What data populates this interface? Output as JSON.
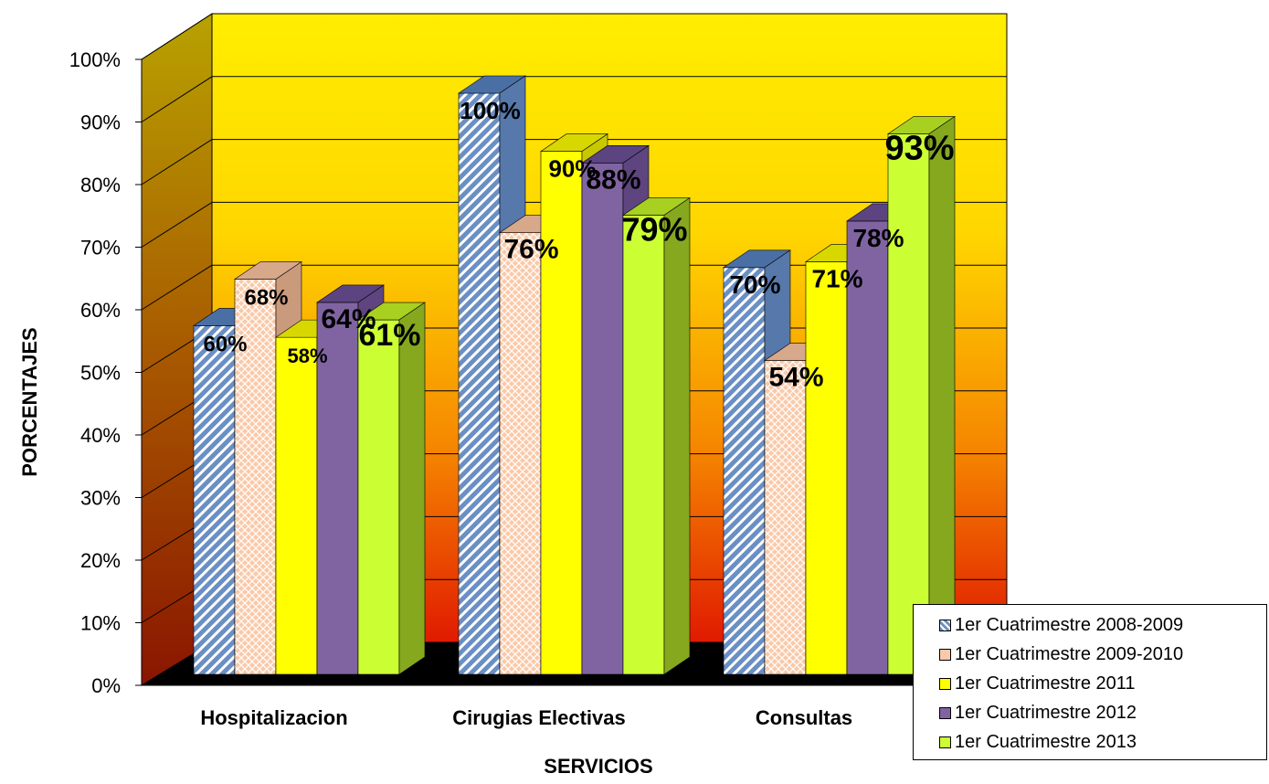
{
  "chart_data": {
    "type": "bar",
    "xlabel": "SERVICIOS",
    "ylabel": "PORCENTAJES",
    "ylim": [
      0,
      100
    ],
    "yticks": [
      "0%",
      "10%",
      "20%",
      "30%",
      "40%",
      "50%",
      "60%",
      "70%",
      "80%",
      "90%",
      "100%"
    ],
    "categories": [
      "Hospitalizacion",
      "Cirugias Electivas",
      "Consultas"
    ],
    "series": [
      {
        "name": "1er Cuatrimestre 2008-2009",
        "values": [
          60,
          100,
          70
        ],
        "labels": [
          "60%",
          "100%",
          "70%"
        ],
        "color": "#6a8fc4",
        "pattern": "diagonal-stripes"
      },
      {
        "name": "1er Cuatrimestre 2009-2010",
        "values": [
          68,
          76,
          54
        ],
        "labels": [
          "68%",
          "76%",
          "54%"
        ],
        "color": "#fbc9a8",
        "pattern": "crosshatch"
      },
      {
        "name": "1er Cuatrimestre 2011",
        "values": [
          58,
          90,
          71
        ],
        "labels": [
          "58%",
          "90%",
          "71%"
        ],
        "color": "#ffff00",
        "pattern": "solid"
      },
      {
        "name": "1er Cuatrimestre 2012",
        "values": [
          64,
          88,
          78
        ],
        "labels": [
          "64%",
          "88%",
          "78%"
        ],
        "color": "#8064a2",
        "pattern": "solid"
      },
      {
        "name": "1er Cuatrimestre 2013",
        "values": [
          61,
          79,
          93
        ],
        "labels": [
          "61%",
          "79%",
          "93%"
        ],
        "color": "#ccff33",
        "pattern": "solid"
      }
    ],
    "legend_position": "bottom-right",
    "grid": true,
    "background": "yellow-to-red gradient"
  }
}
